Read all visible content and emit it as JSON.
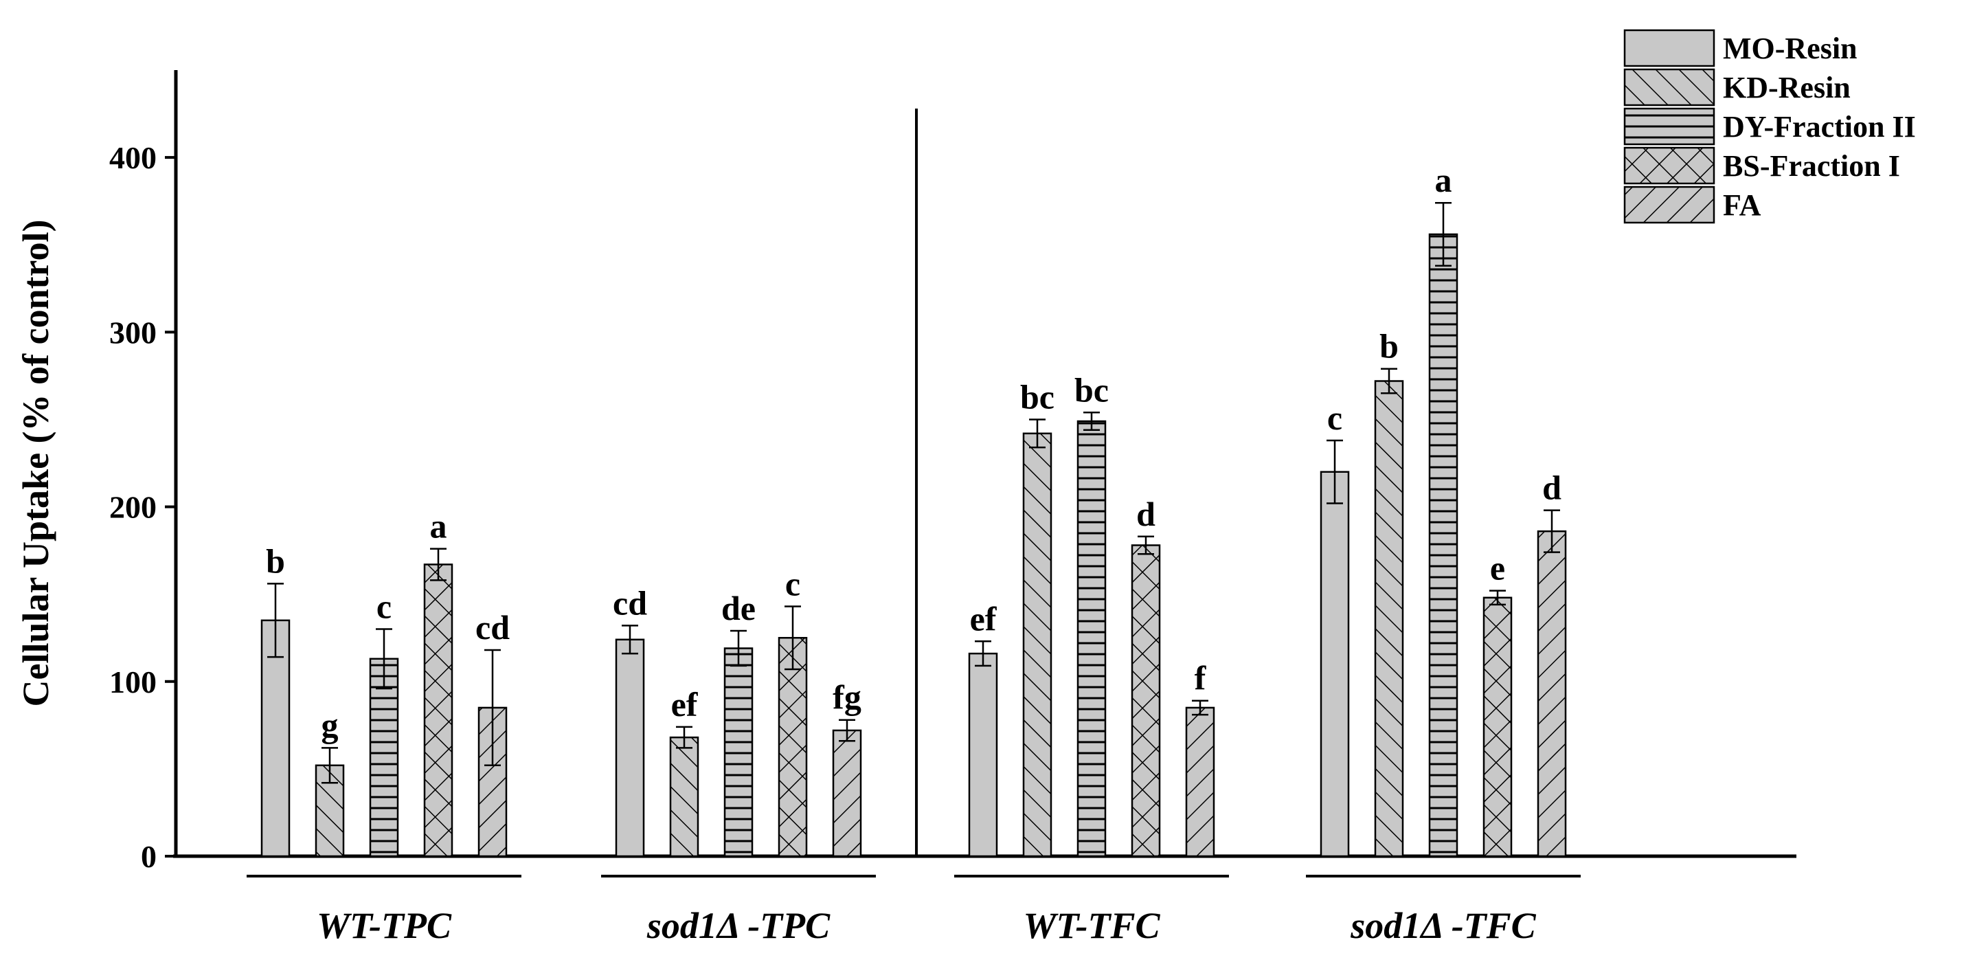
{
  "chart_data": {
    "type": "bar",
    "title": "",
    "xlabel": "",
    "ylabel": "Cellular Uptake (% of control)",
    "ylim": [
      0,
      450
    ],
    "yticks": [
      0,
      100,
      200,
      300,
      400
    ],
    "grid": false,
    "legend_position": "top-right",
    "categories": [
      "WT-TPC",
      "sod1Δ -TPC",
      "WT-TFC",
      "sod1Δ -TFC"
    ],
    "series": [
      {
        "name": "MO-Resin",
        "pattern": "solid",
        "values": [
          135,
          124,
          116,
          220
        ],
        "errors": [
          21,
          8,
          7,
          18
        ],
        "letters": [
          "b",
          "cd",
          "ef",
          "c"
        ]
      },
      {
        "name": "KD-Resin",
        "pattern": "backslash",
        "values": [
          52,
          68,
          242,
          272
        ],
        "errors": [
          10,
          6,
          8,
          7
        ],
        "letters": [
          "g",
          "ef",
          "bc",
          "b"
        ]
      },
      {
        "name": "DY-Fraction II",
        "pattern": "horizontal",
        "values": [
          113,
          119,
          249,
          356
        ],
        "errors": [
          17,
          10,
          5,
          18
        ],
        "letters": [
          "c",
          "de",
          "bc",
          "a"
        ]
      },
      {
        "name": "BS-Fraction I",
        "pattern": "crosshatch",
        "values": [
          167,
          125,
          178,
          148
        ],
        "errors": [
          9,
          18,
          5,
          4
        ],
        "letters": [
          "a",
          "c",
          "d",
          "e"
        ]
      },
      {
        "name": "FA",
        "pattern": "slash",
        "values": [
          85,
          72,
          85,
          186
        ],
        "errors": [
          33,
          6,
          4,
          12
        ],
        "letters": [
          "cd",
          "fg",
          "f",
          "d"
        ]
      }
    ],
    "divider_after_category": "sod1Δ -TPC",
    "colors": {
      "bar_fill": "#c8c8c8",
      "stroke": "#000000",
      "background": "#ffffff"
    }
  }
}
